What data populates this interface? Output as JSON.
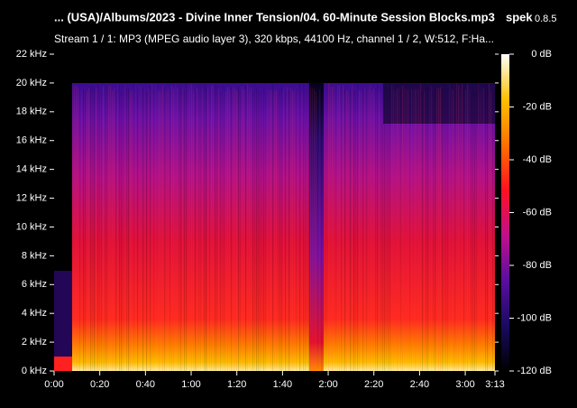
{
  "chart_data": {
    "type": "spectrogram",
    "title": "... (USA)/Albums/2023 - Divine Inner Tension/04. 60-Minute Session Blocks.mp3",
    "app_name": "spek",
    "app_version": "0.8.5",
    "subtitle": "Stream 1 / 1: MP3 (MPEG audio layer 3), 320 kbps, 44100 Hz, channel 1 / 2, W:512, F:Ha...",
    "xlim": [
      0,
      193
    ],
    "xticks": [
      {
        "value": 0,
        "label": "0:00"
      },
      {
        "value": 20,
        "label": "0:20"
      },
      {
        "value": 40,
        "label": "0:40"
      },
      {
        "value": 60,
        "label": "1:00"
      },
      {
        "value": 80,
        "label": "1:20"
      },
      {
        "value": 100,
        "label": "1:40"
      },
      {
        "value": 120,
        "label": "2:00"
      },
      {
        "value": 140,
        "label": "2:20"
      },
      {
        "value": 160,
        "label": "2:40"
      },
      {
        "value": 180,
        "label": "3:00"
      },
      {
        "value": 193,
        "label": "3:13"
      }
    ],
    "ylim": [
      0,
      22
    ],
    "yticks": [
      {
        "value": 0,
        "label": "0 kHz"
      },
      {
        "value": 2,
        "label": "2 kHz"
      },
      {
        "value": 4,
        "label": "4 kHz"
      },
      {
        "value": 6,
        "label": "6 kHz"
      },
      {
        "value": 8,
        "label": "8 kHz"
      },
      {
        "value": 10,
        "label": "10 kHz"
      },
      {
        "value": 12,
        "label": "12 kHz"
      },
      {
        "value": 14,
        "label": "14 kHz"
      },
      {
        "value": 16,
        "label": "16 kHz"
      },
      {
        "value": 18,
        "label": "18 kHz"
      },
      {
        "value": 20,
        "label": "20 kHz"
      },
      {
        "value": 22,
        "label": "22 kHz"
      }
    ],
    "zlim": [
      -120,
      0
    ],
    "zticks": [
      {
        "value": 0,
        "label": "0 dB"
      },
      {
        "value": -20,
        "label": "-20 dB"
      },
      {
        "value": -40,
        "label": "-40 dB"
      },
      {
        "value": -60,
        "label": "-60 dB"
      },
      {
        "value": -80,
        "label": "-80 dB"
      },
      {
        "value": -100,
        "label": "-100 dB"
      },
      {
        "value": -120,
        "label": "-120 dB"
      }
    ],
    "colormap": [
      "#000000",
      "#1a0a60",
      "#5a0ea0",
      "#c0108a",
      "#ff1020",
      "#ff7000",
      "#ffc000",
      "#ffffff"
    ]
  }
}
